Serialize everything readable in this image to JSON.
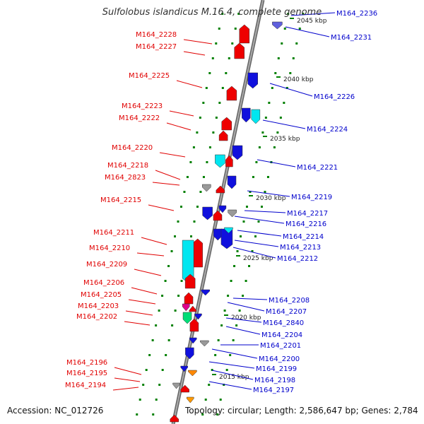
{
  "title": "Sulfolobus islandicus M.16.4, complete genome",
  "accession": "Accession: NC_012726",
  "summary": "Topology: circular; Length: 2,586,647 bp; Genes: 2,784",
  "colors": {
    "left_label": "#e00000",
    "right_label": "#0000cc",
    "axis": "#888888",
    "tick": "#008000"
  },
  "kbp_ticks": [
    "2045 kbp",
    "2040 kbp",
    "2035 kbp",
    "2030 kbp",
    "2025 kbp",
    "2020 kbp",
    "2015 kbp"
  ],
  "left_labels": [
    "M164_2228",
    "M164_2227",
    "M164_2225",
    "M164_2223",
    "M164_2222",
    "M164_2220",
    "M164_2218",
    "M164_2823",
    "M164_2215",
    "M164_2211",
    "M164_2210",
    "M164_2209",
    "M164_2206",
    "M164_2205",
    "M164_2203",
    "M164_2202",
    "M164_2196",
    "M164_2195",
    "M164_2194"
  ],
  "right_labels": [
    "M164_2236",
    "M164_2231",
    "M164_2226",
    "M164_2224",
    "M164_2221",
    "M164_2219",
    "M164_2217",
    "M164_2216",
    "M164_2214",
    "M164_2213",
    "M164_2212",
    "M164_2208",
    "M164_2207",
    "M164_2840",
    "M164_2204",
    "M164_2201",
    "M164_2200",
    "M164_2199",
    "M164_2198",
    "M164_2197"
  ]
}
